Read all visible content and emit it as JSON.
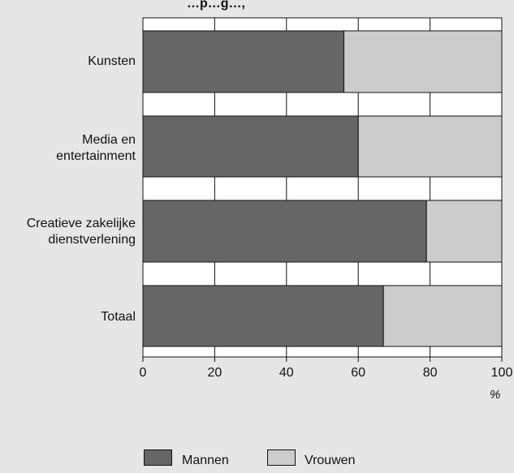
{
  "chart_data": {
    "type": "bar",
    "orientation": "horizontal",
    "stacked": true,
    "title_fragment": "…p…g…,",
    "categories": [
      "Kunsten",
      "Media en entertainment",
      "Creatieve zakelijke dienstverlening",
      "Totaal"
    ],
    "series": [
      {
        "name": "Mannen",
        "values": [
          56,
          60,
          79,
          67
        ],
        "color": "#666666"
      },
      {
        "name": "Vrouwen",
        "values": [
          44,
          40,
          21,
          33
        ],
        "color": "#cccccc"
      }
    ],
    "xlim": [
      0,
      100
    ],
    "xticks": [
      "0",
      "20",
      "40",
      "60",
      "80",
      "100"
    ],
    "xunit": "%",
    "grid": "vertical",
    "legend_position": "bottom"
  },
  "labels": {
    "cat1_line1": "Kunsten",
    "cat2_line1": "Media en",
    "cat2_line2": "entertainment",
    "cat3_line1": "Creatieve zakelijke",
    "cat3_line2": "dienstverlening",
    "cat4_line1": "Totaal"
  }
}
